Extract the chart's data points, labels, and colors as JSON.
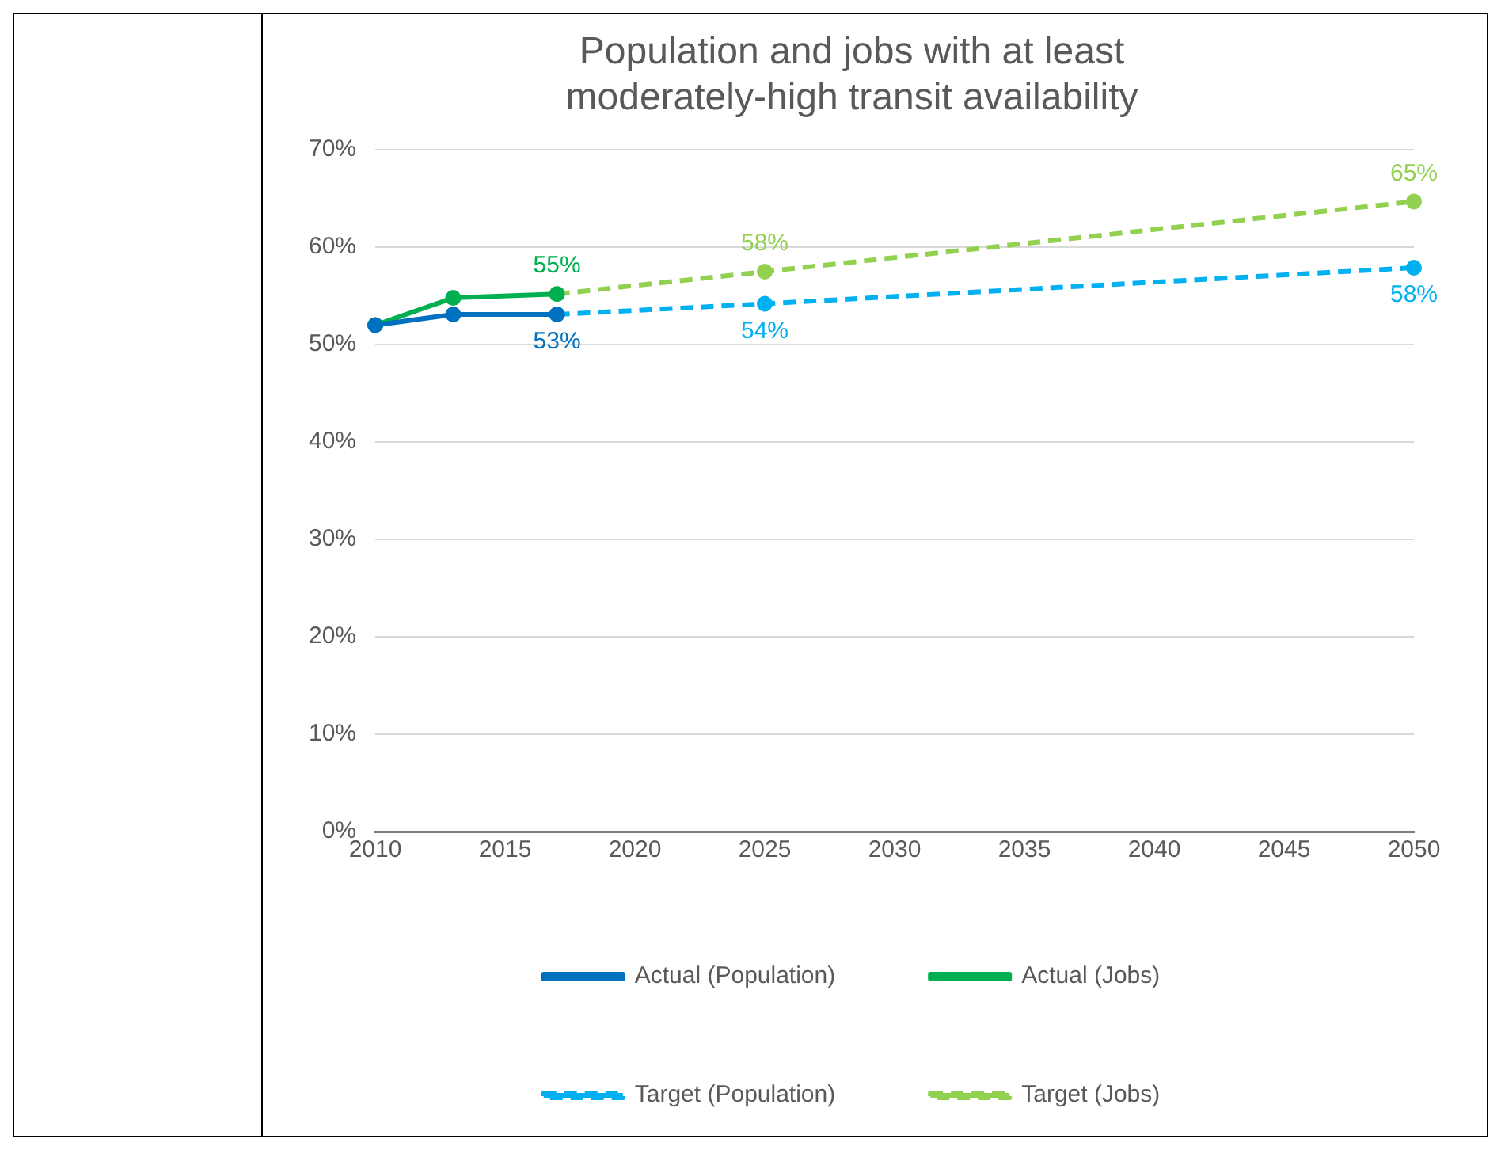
{
  "chart_data": {
    "type": "line",
    "title": "Population and jobs with at least moderately-high transit availability",
    "xlim": [
      2010,
      2050
    ],
    "xticks": [
      2010,
      2015,
      2020,
      2025,
      2030,
      2035,
      2040,
      2045,
      2050
    ],
    "ylim": [
      0,
      70
    ],
    "yticks": [
      {
        "value": 0,
        "label": "0%"
      },
      {
        "value": 10,
        "label": "10%"
      },
      {
        "value": 20,
        "label": "20%"
      },
      {
        "value": 30,
        "label": "30%"
      },
      {
        "value": 40,
        "label": "40%"
      },
      {
        "value": 50,
        "label": "50%"
      },
      {
        "value": 60,
        "label": "60%"
      },
      {
        "value": 70,
        "label": "70%"
      }
    ],
    "grid": "y",
    "legend": "bottom",
    "marker": "circle",
    "series": [
      {
        "name": "Actual (Population)",
        "color": "#0070c0",
        "x": [
          2010,
          2013,
          2017
        ],
        "values": [
          52,
          53.1,
          53.1
        ],
        "value_labels": [
          null,
          null,
          "53%"
        ],
        "line_style": "solid"
      },
      {
        "name": "Actual (Jobs)",
        "color": "#00b050",
        "x": [
          2010,
          2013,
          2017
        ],
        "values": [
          52,
          54.8,
          55.2
        ],
        "value_labels": [
          null,
          null,
          "55%"
        ],
        "line_style": "solid"
      },
      {
        "name": "Target (Population)",
        "color": "#00b0f0",
        "x": [
          2017,
          2025,
          2050
        ],
        "values": [
          53.1,
          54.2,
          57.9
        ],
        "value_labels": [
          null,
          "54%",
          "58%"
        ],
        "line_style": "dashed"
      },
      {
        "name": "Target (Jobs)",
        "color": "#92d050",
        "x": [
          2017,
          2025,
          2050
        ],
        "values": [
          55.2,
          57.5,
          64.7
        ],
        "value_labels": [
          null,
          "58%",
          "65%"
        ],
        "line_style": "dashed"
      }
    ]
  }
}
